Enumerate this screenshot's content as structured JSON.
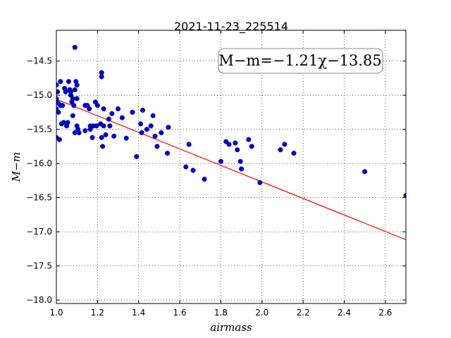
{
  "chart_data": {
    "type": "scatter",
    "title": "2021-11-23_225514",
    "xlabel": "airmass",
    "ylabel": "M−m",
    "xlim": [
      1.0,
      2.7
    ],
    "ylim": [
      -18.05,
      -14.05
    ],
    "ylim_inverted": true,
    "grid": true,
    "x_ticks": [
      1.0,
      1.2,
      1.4,
      1.6,
      1.8,
      2.0,
      2.2,
      2.4,
      2.6
    ],
    "y_ticks": [
      -14.5,
      -15.0,
      -15.5,
      -16.0,
      -16.5,
      -17.0,
      -17.5,
      -18.0
    ],
    "x_tick_labels": [
      "1.0",
      "1.2",
      "1.4",
      "1.6",
      "1.8",
      "2.0",
      "2.2",
      "2.4",
      "2.6"
    ],
    "y_tick_labels": [
      "−14.5",
      "−15.0",
      "−15.5",
      "−16.0",
      "−16.5",
      "−17.0",
      "−17.5",
      "−18.0"
    ],
    "annotation": "M−m=−1.21χ−13.85",
    "annotation_position": "top-right",
    "fit": {
      "slope": -1.21,
      "intercept": -13.85,
      "color": "#ff0000"
    },
    "marker_color": "#0000cc",
    "points": [
      [
        1.0,
        -15.05
      ],
      [
        1.0,
        -15.1
      ],
      [
        1.0,
        -15.2
      ],
      [
        1.0,
        -15.62
      ],
      [
        1.0,
        -14.85
      ],
      [
        1.005,
        -14.95
      ],
      [
        1.01,
        -15.12
      ],
      [
        1.01,
        -15.25
      ],
      [
        1.015,
        -15.65
      ],
      [
        1.02,
        -15.15
      ],
      [
        1.02,
        -14.8
      ],
      [
        1.025,
        -15.42
      ],
      [
        1.03,
        -15.15
      ],
      [
        1.035,
        -15.4
      ],
      [
        1.04,
        -14.9
      ],
      [
        1.045,
        -14.95
      ],
      [
        1.05,
        -15.45
      ],
      [
        1.055,
        -15.4
      ],
      [
        1.06,
        -14.8
      ],
      [
        1.065,
        -14.92
      ],
      [
        1.07,
        -14.95
      ],
      [
        1.07,
        -15.0
      ],
      [
        1.075,
        -15.1
      ],
      [
        1.08,
        -15.05
      ],
      [
        1.08,
        -15.3
      ],
      [
        1.085,
        -15.15
      ],
      [
        1.09,
        -14.92
      ],
      [
        1.09,
        -15.55
      ],
      [
        1.095,
        -14.8
      ],
      [
        1.1,
        -14.85
      ],
      [
        1.1,
        -15.05
      ],
      [
        1.1,
        -15.45
      ],
      [
        1.105,
        -15.5
      ],
      [
        1.11,
        -15.55
      ],
      [
        1.09,
        -14.3
      ],
      [
        1.14,
        -15.15
      ],
      [
        1.14,
        -15.52
      ],
      [
        1.15,
        -15.15
      ],
      [
        1.16,
        -15.2
      ],
      [
        1.165,
        -15.45
      ],
      [
        1.165,
        -15.5
      ],
      [
        1.175,
        -15.62
      ],
      [
        1.18,
        -15.45
      ],
      [
        1.19,
        -15.1
      ],
      [
        1.195,
        -15.45
      ],
      [
        1.2,
        -15.15
      ],
      [
        1.215,
        -15.42
      ],
      [
        1.22,
        -14.67
      ],
      [
        1.22,
        -14.73
      ],
      [
        1.22,
        -15.62
      ],
      [
        1.225,
        -15.75
      ],
      [
        1.23,
        -15.45
      ],
      [
        1.23,
        -15.2
      ],
      [
        1.24,
        -15.58
      ],
      [
        1.255,
        -15.35
      ],
      [
        1.26,
        -15.45
      ],
      [
        1.27,
        -15.27
      ],
      [
        1.28,
        -15.6
      ],
      [
        1.3,
        -15.2
      ],
      [
        1.32,
        -15.33
      ],
      [
        1.34,
        -15.63
      ],
      [
        1.37,
        -15.25
      ],
      [
        1.39,
        -15.9
      ],
      [
        1.41,
        -15.42
      ],
      [
        1.415,
        -15.55
      ],
      [
        1.42,
        -15.22
      ],
      [
        1.44,
        -15.5
      ],
      [
        1.46,
        -15.45
      ],
      [
        1.47,
        -15.3
      ],
      [
        1.48,
        -15.6
      ],
      [
        1.49,
        -15.75
      ],
      [
        1.51,
        -15.55
      ],
      [
        1.54,
        -15.85
      ],
      [
        1.545,
        -15.47
      ],
      [
        1.63,
        -16.05
      ],
      [
        1.645,
        -15.72
      ],
      [
        1.665,
        -16.1
      ],
      [
        1.72,
        -16.23
      ],
      [
        1.8,
        -15.97
      ],
      [
        1.825,
        -15.68
      ],
      [
        1.84,
        -15.72
      ],
      [
        1.87,
        -15.7
      ],
      [
        1.88,
        -15.8
      ],
      [
        1.895,
        -15.97
      ],
      [
        1.9,
        -16.08
      ],
      [
        1.935,
        -15.65
      ],
      [
        1.95,
        -15.75
      ],
      [
        1.99,
        -16.28
      ],
      [
        2.09,
        -15.8
      ],
      [
        2.11,
        -15.72
      ],
      [
        2.155,
        -15.85
      ],
      [
        2.5,
        -16.12
      ],
      [
        2.7,
        -16.47
      ]
    ]
  }
}
